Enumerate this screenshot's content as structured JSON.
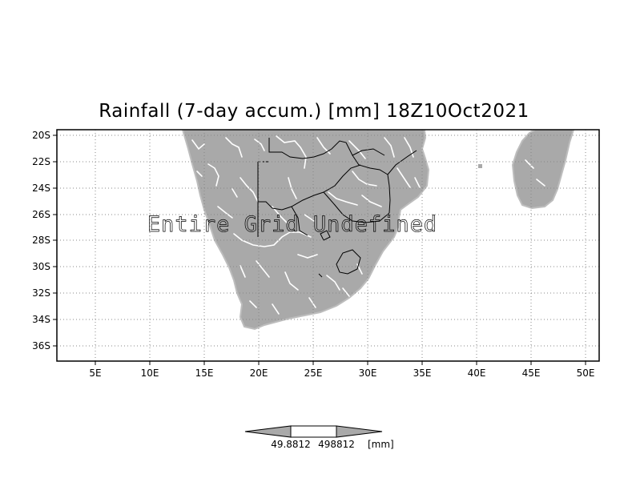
{
  "title": "Rainfall (7-day accum.) [mm] 18Z10Oct2021",
  "overlay_text": "Entire Grid Undefined",
  "lat_ticks": [
    "20S",
    "22S",
    "24S",
    "26S",
    "28S",
    "30S",
    "32S",
    "34S",
    "36S"
  ],
  "lon_ticks": [
    "5E",
    "10E",
    "15E",
    "20E",
    "25E",
    "30E",
    "35E",
    "40E",
    "45E",
    "50E"
  ],
  "colorbar": {
    "levels": [
      "49.8812",
      "498812"
    ],
    "unit": "[mm]"
  },
  "colors": {
    "land": "#a9a9a9",
    "grid": "#888888",
    "rivers": "#ffffff"
  }
}
